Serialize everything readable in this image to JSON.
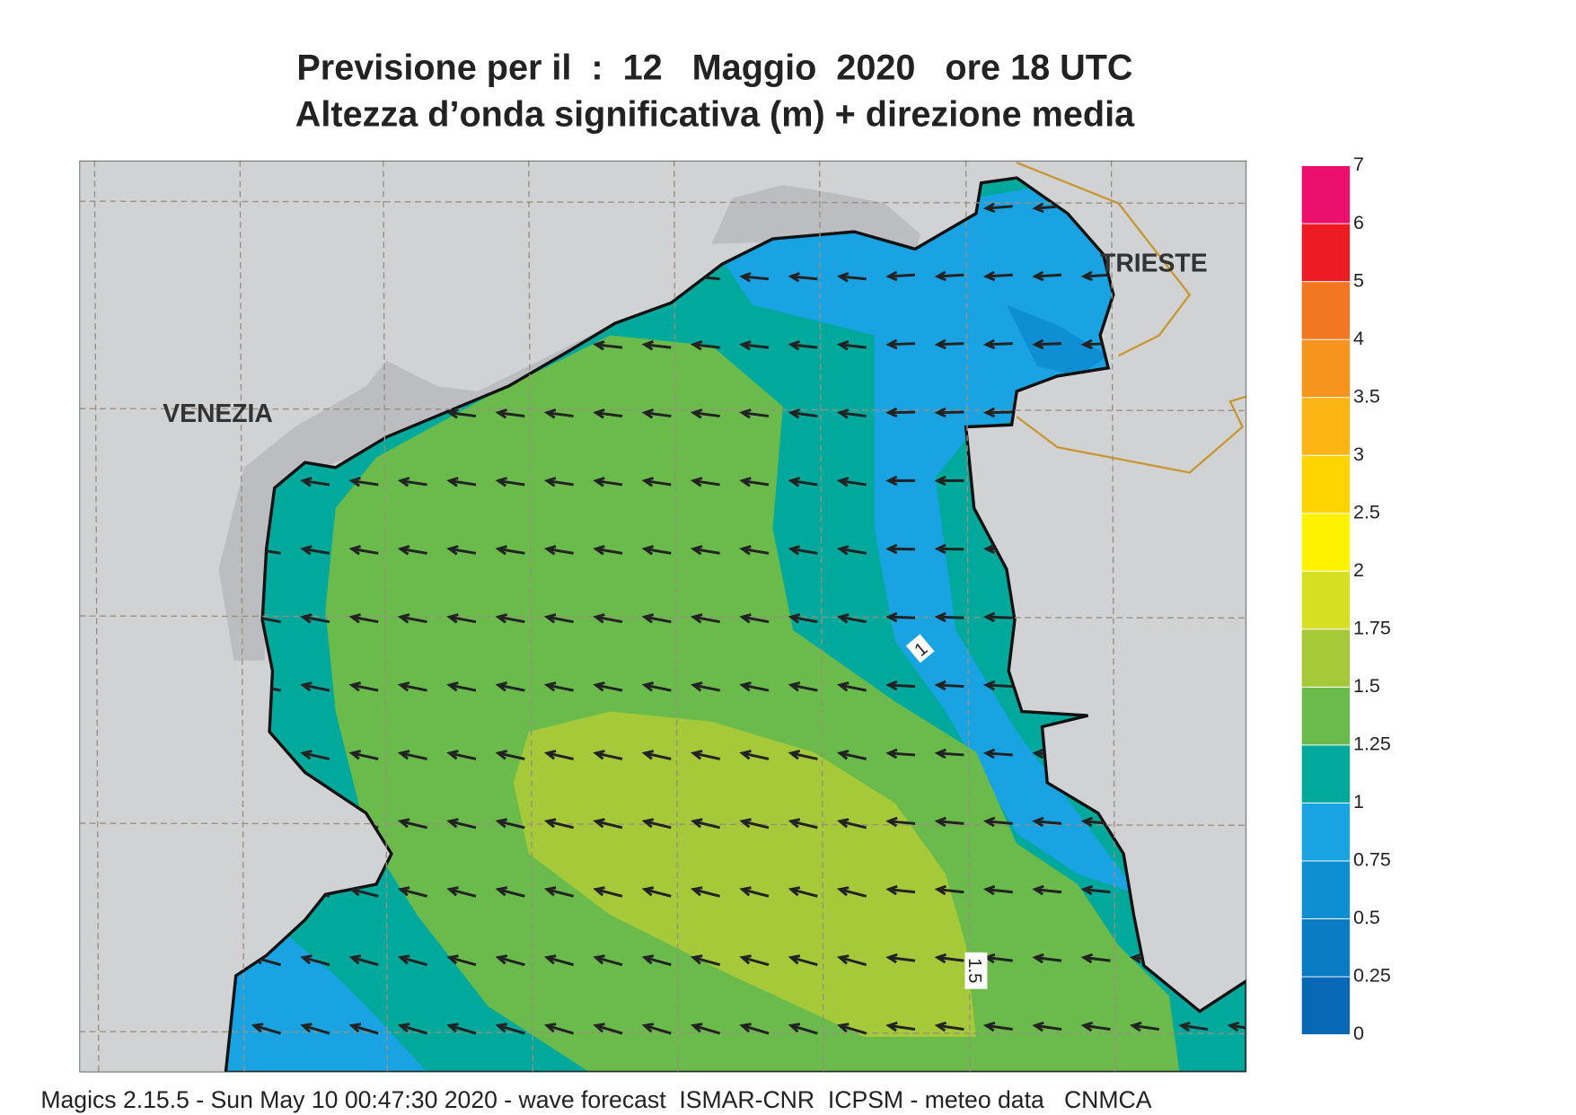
{
  "header": {
    "title": [
      "Previsione per il  :  12   Maggio  2020   ore 18 UTC",
      "Altezza d’onda significativa (m) + direzione media"
    ]
  },
  "map": {
    "places": [
      "VENEZIA",
      "TRIESTE"
    ],
    "contour_labels": [
      "1",
      "1.5"
    ]
  },
  "legend": {
    "levels": [
      0,
      0.25,
      0.5,
      0.75,
      1,
      1.25,
      1.5,
      1.75,
      2,
      2.5,
      3,
      3.5,
      4,
      5,
      6,
      7
    ],
    "colors": [
      "#0868b5",
      "#0a7cc4",
      "#0e8fd3",
      "#1aa3e3",
      "#00a99b",
      "#6abb4b",
      "#a6c93a",
      "#d6df24",
      "#fff200",
      "#ffd400",
      "#fdb515",
      "#f7941d",
      "#f37721",
      "#ed1c24",
      "#ec0f6c"
    ]
  },
  "footer": "Magics 2.15.5 - Sun May 10 00:47:30 2020 - wave forecast  ISMAR-CNR  ICPSM - meteo data   CNMCA"
}
